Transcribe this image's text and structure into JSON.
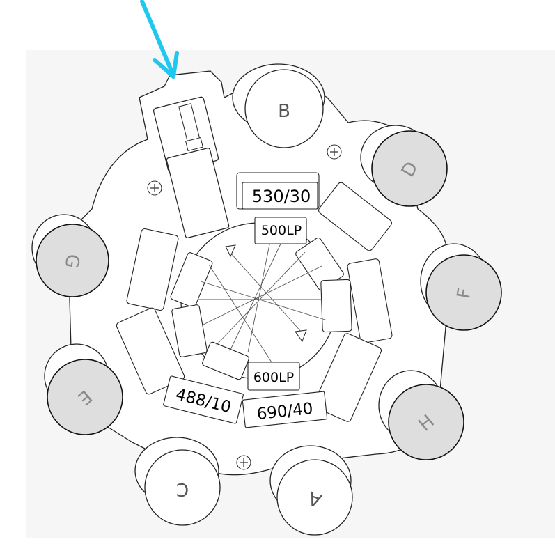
{
  "colors": {
    "background": "#ffffff",
    "backdrop": "#f6f6f6",
    "line": "#222222",
    "detector_fill": "#dedede",
    "detector_light": "#f2f2f2",
    "detector_label": "#8a8a8a",
    "arrow": "#1fc8f0"
  },
  "detectors": {
    "a": "A",
    "b": "B",
    "c": "C",
    "d": "D",
    "e": "E",
    "f": "F",
    "g": "G",
    "h": "H"
  },
  "filters": {
    "f530": "530/30",
    "f500": "500LP",
    "f600": "600LP",
    "f488": "488/10",
    "f690": "690/40"
  },
  "icons": {
    "arrow": "input-beam-arrow",
    "screw": "screw-icon"
  }
}
